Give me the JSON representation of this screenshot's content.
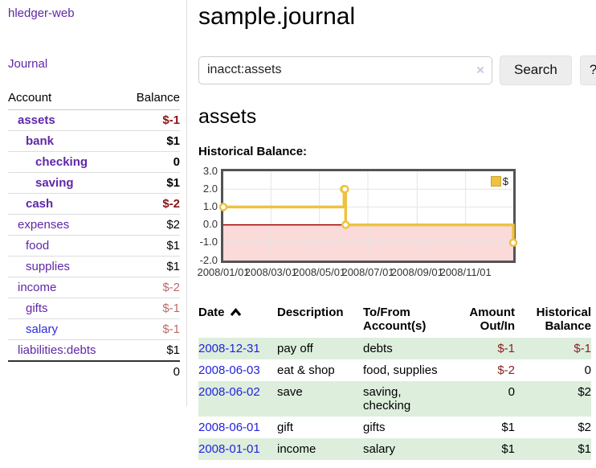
{
  "app": {
    "title": "hledger-web"
  },
  "colors": {
    "link_purple": "#5f27a8",
    "link_blue": "#2a2ae0",
    "negative_strong": "#8b1414",
    "negative_soft": "#bc6a6a",
    "row_stripe_green": "#ddeedd",
    "chart_gold": "#edc240",
    "chart_negative_fill": "#fbdada",
    "chart_zero_line": "#a40000"
  },
  "sidebar": {
    "journal_link": "Journal",
    "accounts": {
      "account_header": "Account",
      "balance_header": "Balance",
      "rows": [
        {
          "account": "assets",
          "balance": "$-1",
          "depth": 1,
          "bold": true,
          "balance_class": "neg-strong",
          "link": "purple"
        },
        {
          "account": "bank",
          "balance": "$1",
          "depth": 2,
          "bold": true,
          "balance_class": "pos",
          "link": "purple"
        },
        {
          "account": "checking",
          "balance": "0",
          "depth": 3,
          "bold": true,
          "balance_class": "pos",
          "link": "purple"
        },
        {
          "account": "saving",
          "balance": "$1",
          "depth": 3,
          "bold": true,
          "balance_class": "pos",
          "link": "purple"
        },
        {
          "account": "cash",
          "balance": "$-2",
          "depth": 2,
          "bold": true,
          "balance_class": "neg-strong",
          "link": "purple"
        },
        {
          "account": "expenses",
          "balance": "$2",
          "depth": 1,
          "bold": false,
          "balance_class": "pos",
          "link": "purple"
        },
        {
          "account": "food",
          "balance": "$1",
          "depth": 2,
          "bold": false,
          "balance_class": "pos",
          "link": "purple"
        },
        {
          "account": "supplies",
          "balance": "$1",
          "depth": 2,
          "bold": false,
          "balance_class": "pos",
          "link": "purple"
        },
        {
          "account": "income",
          "balance": "$-2",
          "depth": 1,
          "bold": false,
          "balance_class": "neg-soft",
          "link": "purple"
        },
        {
          "account": "gifts",
          "balance": "$-1",
          "depth": 2,
          "bold": false,
          "balance_class": "neg-soft",
          "link": "purple"
        },
        {
          "account": "salary",
          "balance": "$-1",
          "depth": 2,
          "bold": false,
          "balance_class": "neg-soft",
          "link": "blue"
        },
        {
          "account": "liabilities:debts",
          "balance": "$1",
          "depth": 1,
          "bold": false,
          "balance_class": "pos",
          "link": "purple"
        }
      ],
      "total": "0"
    }
  },
  "main": {
    "title": "sample.journal",
    "search": {
      "value": "inacct:assets",
      "clear_icon": "×",
      "button_label": "Search",
      "help_label": "?"
    },
    "account_heading": "assets",
    "chart_label": "Historical Balance:"
  },
  "chart_data": {
    "type": "line",
    "line_style": "step-post",
    "title": "Historical Balance:",
    "xlim": [
      "2008-01-01",
      "2008-12-31"
    ],
    "ylim": [
      -2.0,
      3.0
    ],
    "grid": true,
    "legend_position": "top-right",
    "x_ticks": [
      {
        "date": "2008-01-01",
        "label": "2008/01/01"
      },
      {
        "date": "2008-03-01",
        "label": "2008/03/01"
      },
      {
        "date": "2008-05-01",
        "label": "2008/05/01"
      },
      {
        "date": "2008-07-01",
        "label": "2008/07/01"
      },
      {
        "date": "2008-09-01",
        "label": "2008/09/01"
      },
      {
        "date": "2008-11-01",
        "label": "2008/11/01"
      }
    ],
    "y_ticks": [
      {
        "value": 3,
        "label": "3.0"
      },
      {
        "value": 2,
        "label": "2.0"
      },
      {
        "value": 1,
        "label": "1.0"
      },
      {
        "value": 0,
        "label": "0.0"
      },
      {
        "value": -1,
        "label": "-1.0"
      },
      {
        "value": -2,
        "label": "-2.0"
      }
    ],
    "series": [
      {
        "name": "$",
        "color": "#edc240",
        "points": [
          [
            "2008-01-01",
            1
          ],
          [
            "2008-06-01",
            2
          ],
          [
            "2008-06-02",
            2
          ],
          [
            "2008-06-03",
            0
          ],
          [
            "2008-12-31",
            -1
          ]
        ]
      }
    ],
    "markings": {
      "negative_region_fill": "#fbdada",
      "zero_line_color": "#a40000"
    }
  },
  "register": {
    "headers": [
      "Date",
      "Description",
      "To/From Account(s)",
      "Amount Out/In",
      "Historical Balance"
    ],
    "sort": {
      "column": "Date",
      "direction": "ascending"
    },
    "rows": [
      {
        "date": "2008-12-31",
        "description": "pay off",
        "accounts": "debts",
        "amount": "$-1",
        "balance": "$-1"
      },
      {
        "date": "2008-06-03",
        "description": "eat & shop",
        "accounts": "food, supplies",
        "amount": "$-2",
        "balance": "0"
      },
      {
        "date": "2008-06-02",
        "description": "save",
        "accounts": "saving, checking",
        "amount": "0",
        "balance": "$2"
      },
      {
        "date": "2008-06-01",
        "description": "gift",
        "accounts": "gifts",
        "amount": "$1",
        "balance": "$2"
      },
      {
        "date": "2008-01-01",
        "description": "income",
        "accounts": "salary",
        "amount": "$1",
        "balance": "$1"
      }
    ]
  }
}
